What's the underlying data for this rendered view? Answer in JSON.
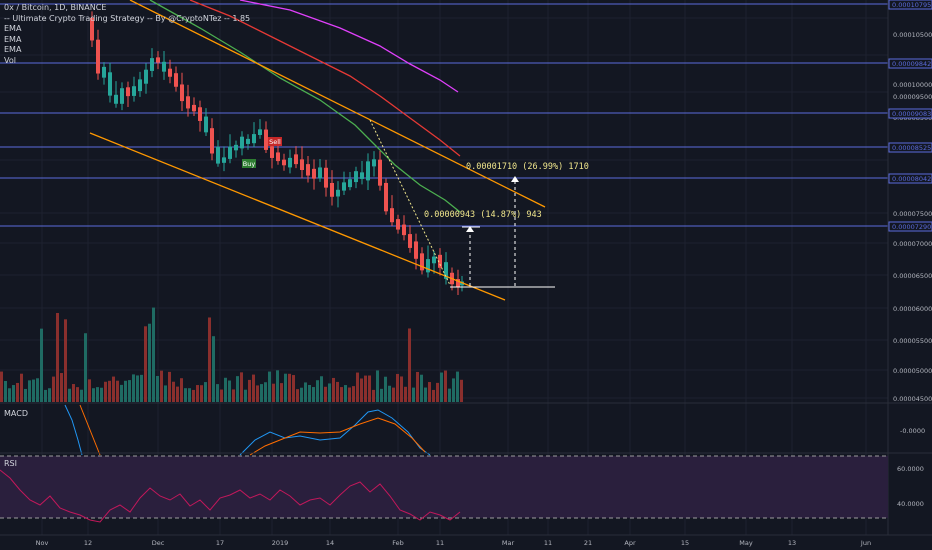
{
  "legend": {
    "title": "0x / Bitcoin, 1D, BINANCE",
    "strategy": "-- Ultimate Crypto Trading Strategy -- By @CryptoNTez -- 1.85",
    "ema1": "EMA",
    "ema2": "EMA",
    "ema3": "EMA",
    "vol": "Vol"
  },
  "panes": {
    "macd": "MACD",
    "rsi": "RSI"
  },
  "colors": {
    "background": "#131722",
    "up": "#26a69a",
    "down": "#ef5350",
    "ema_fast": "#4caf50",
    "ema_mid": "#e53935",
    "ema_slow": "#e040fb",
    "channel": "#ff9800",
    "hline": "#5b6bdc",
    "rsi_bg": "#2a1f3d",
    "rsi_line": "#c2185b",
    "macd": "#2196f3",
    "signal": "#ff6d00",
    "measure": "#f0e68c",
    "tag": "#131722"
  },
  "chart_data": {
    "type": "candlestick",
    "title": "0x / Bitcoin, 1D, BINANCE",
    "ylim": [
      4.5e-06,
      1.08e-05
    ],
    "x_ticks": [
      "Nov",
      "12",
      "Dec",
      "17",
      "2019",
      "14",
      "Feb",
      "11",
      "Mar",
      "11",
      "21",
      "Apr",
      "15",
      "May",
      "13",
      "Jun"
    ],
    "y_ticks": [
      "0.00010500",
      "0.00010000",
      "0.00009500",
      "0.00008500",
      "0.00007500",
      "0.00007000",
      "0.00006500",
      "0.00006000",
      "0.00005500",
      "0.00005000",
      "0.00004500"
    ],
    "price_tags": [
      "0.00010795",
      "0.00009842",
      "0.00009083",
      "0.00008525",
      "0.00008042",
      "0.00007290"
    ],
    "signals": [
      {
        "label": "Sell"
      },
      {
        "label": "Buy"
      }
    ],
    "measures": [
      {
        "label": "0.00001710 (26.99%) 1710"
      },
      {
        "label": "0.00000943 (14.87%) 943"
      }
    ],
    "rsi_ticks": [
      "60.0000",
      "40.0000"
    ],
    "macd_ticks": [
      "-0.0000"
    ],
    "close_series": [
      9.8e-06,
      9.6e-06,
      9.4e-06,
      9.2e-06,
      9.3e-06,
      9.1e-06,
      9e-06,
      8.8e-06,
      8.9e-06,
      8.7e-06,
      8.6e-06,
      8.4e-06,
      8.3e-06,
      8.2e-06,
      8.3e-06,
      8.1e-06,
      8e-06,
      7.9e-06,
      7.7e-06,
      7.6e-06,
      7.4e-06,
      7.2e-06,
      7e-06,
      6.8e-06,
      6.6e-06,
      6.5e-06,
      6.4e-06
    ]
  }
}
